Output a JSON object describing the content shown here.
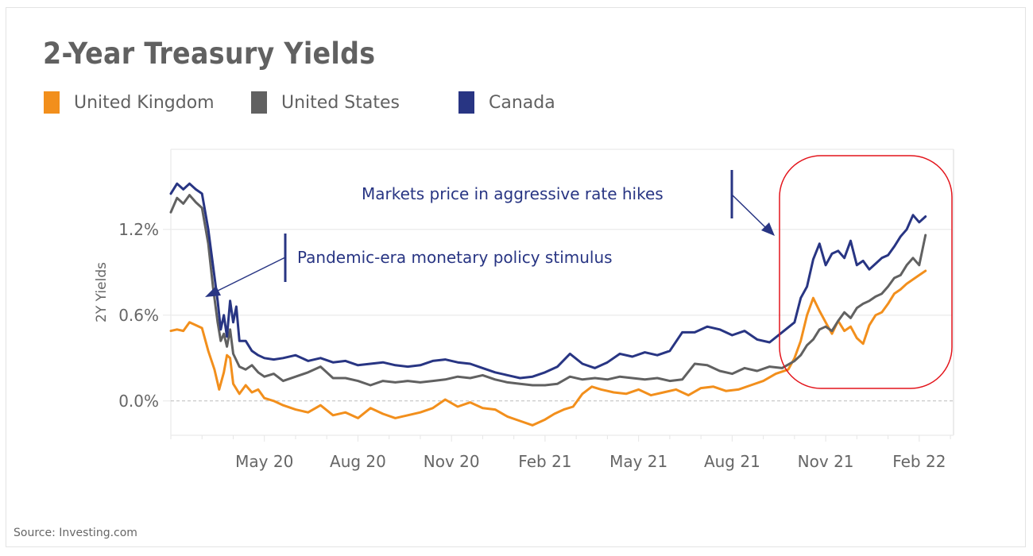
{
  "title": "2-Year Treasury Yields",
  "source": "Source: Investing.com",
  "colors": {
    "uk": "#f28f1c",
    "us": "#616161",
    "canada": "#283583",
    "highlight": "#e3141b",
    "grid": "#eeeeee",
    "zero_line": "#bbbbbb"
  },
  "legend": [
    {
      "label": "United Kingdom",
      "color": "#f28f1c"
    },
    {
      "label": "United States",
      "color": "#616161"
    },
    {
      "label": "Canada",
      "color": "#283583"
    }
  ],
  "annotations": {
    "pandemic": "Pandemic-era monetary policy stimulus",
    "hikes": "Markets price in aggressive rate hikes"
  },
  "chart_data": {
    "type": "line",
    "title": "2-Year Treasury Yields",
    "xlabel": "",
    "ylabel": "2Y Yields",
    "x_unit": "months since Feb 2020",
    "xlim": [
      0,
      25.1
    ],
    "ylim": [
      -0.24,
      1.76
    ],
    "x_ticks": [
      {
        "x": 3,
        "label": "May 20"
      },
      {
        "x": 6,
        "label": "Aug 20"
      },
      {
        "x": 9,
        "label": "Nov 20"
      },
      {
        "x": 12,
        "label": "Feb 21"
      },
      {
        "x": 15,
        "label": "May 21"
      },
      {
        "x": 18,
        "label": "Aug 21"
      },
      {
        "x": 21,
        "label": "Nov 21"
      },
      {
        "x": 24,
        "label": "Feb 22"
      }
    ],
    "y_ticks": [
      {
        "y": 0.0,
        "label": "0.0%"
      },
      {
        "y": 0.6,
        "label": "0.6%"
      },
      {
        "y": 1.2,
        "label": "1.2%"
      }
    ],
    "grid": true,
    "legend_position": "top-left",
    "series": [
      {
        "name": "United Kingdom",
        "key": "uk",
        "x": [
          0,
          0.2,
          0.4,
          0.6,
          0.8,
          1.0,
          1.2,
          1.4,
          1.55,
          1.7,
          1.8,
          1.9,
          2.0,
          2.2,
          2.4,
          2.6,
          2.8,
          3.0,
          3.3,
          3.6,
          4.0,
          4.4,
          4.8,
          5.2,
          5.6,
          6.0,
          6.4,
          6.8,
          7.2,
          7.6,
          8.0,
          8.4,
          8.8,
          9.2,
          9.6,
          10.0,
          10.4,
          10.8,
          11.2,
          11.6,
          12.0,
          12.3,
          12.6,
          12.9,
          13.2,
          13.5,
          13.8,
          14.2,
          14.6,
          15.0,
          15.4,
          15.8,
          16.2,
          16.6,
          17.0,
          17.4,
          17.8,
          18.2,
          18.6,
          19.0,
          19.4,
          19.8,
          20.0,
          20.2,
          20.4,
          20.6,
          20.8,
          21.0,
          21.2,
          21.4,
          21.6,
          21.8,
          22.0,
          22.2,
          22.4,
          22.6,
          22.8,
          23.0,
          23.2,
          23.4,
          23.6,
          23.8,
          24.0,
          24.2
        ],
        "values": [
          0.49,
          0.5,
          0.49,
          0.55,
          0.53,
          0.51,
          0.35,
          0.22,
          0.08,
          0.2,
          0.32,
          0.3,
          0.12,
          0.05,
          0.11,
          0.06,
          0.08,
          0.02,
          0.0,
          -0.03,
          -0.06,
          -0.08,
          -0.03,
          -0.1,
          -0.08,
          -0.12,
          -0.05,
          -0.09,
          -0.12,
          -0.1,
          -0.08,
          -0.05,
          0.01,
          -0.04,
          -0.01,
          -0.05,
          -0.06,
          -0.11,
          -0.14,
          -0.17,
          -0.13,
          -0.09,
          -0.06,
          -0.04,
          0.05,
          0.1,
          0.08,
          0.06,
          0.05,
          0.08,
          0.04,
          0.06,
          0.08,
          0.04,
          0.09,
          0.1,
          0.07,
          0.08,
          0.11,
          0.14,
          0.19,
          0.22,
          0.3,
          0.42,
          0.6,
          0.72,
          0.63,
          0.55,
          0.47,
          0.56,
          0.49,
          0.52,
          0.44,
          0.4,
          0.53,
          0.6,
          0.62,
          0.68,
          0.75,
          0.78,
          0.82,
          0.85,
          0.88,
          0.91
        ]
      },
      {
        "name": "United States",
        "key": "us",
        "x": [
          0,
          0.2,
          0.4,
          0.6,
          0.8,
          1.0,
          1.2,
          1.35,
          1.5,
          1.6,
          1.7,
          1.8,
          1.9,
          2.0,
          2.2,
          2.4,
          2.6,
          2.8,
          3.0,
          3.3,
          3.6,
          4.0,
          4.4,
          4.8,
          5.2,
          5.6,
          6.0,
          6.4,
          6.8,
          7.2,
          7.6,
          8.0,
          8.4,
          8.8,
          9.2,
          9.6,
          10.0,
          10.4,
          10.8,
          11.2,
          11.6,
          12.0,
          12.4,
          12.8,
          13.2,
          13.6,
          14.0,
          14.4,
          14.8,
          15.2,
          15.6,
          16.0,
          16.4,
          16.8,
          17.2,
          17.6,
          18.0,
          18.4,
          18.8,
          19.2,
          19.6,
          20.0,
          20.2,
          20.4,
          20.6,
          20.8,
          21.0,
          21.2,
          21.4,
          21.6,
          21.8,
          22.0,
          22.2,
          22.4,
          22.6,
          22.8,
          23.0,
          23.2,
          23.4,
          23.6,
          23.8,
          24.0,
          24.2
        ],
        "values": [
          1.32,
          1.42,
          1.38,
          1.44,
          1.39,
          1.35,
          1.1,
          0.8,
          0.55,
          0.42,
          0.47,
          0.38,
          0.5,
          0.33,
          0.24,
          0.22,
          0.25,
          0.2,
          0.17,
          0.19,
          0.14,
          0.17,
          0.2,
          0.24,
          0.16,
          0.16,
          0.14,
          0.11,
          0.14,
          0.13,
          0.14,
          0.13,
          0.14,
          0.15,
          0.17,
          0.16,
          0.18,
          0.15,
          0.13,
          0.12,
          0.11,
          0.11,
          0.12,
          0.17,
          0.15,
          0.16,
          0.15,
          0.17,
          0.16,
          0.15,
          0.16,
          0.14,
          0.15,
          0.26,
          0.25,
          0.21,
          0.19,
          0.23,
          0.21,
          0.24,
          0.23,
          0.28,
          0.32,
          0.39,
          0.43,
          0.5,
          0.52,
          0.49,
          0.56,
          0.62,
          0.58,
          0.65,
          0.68,
          0.7,
          0.73,
          0.75,
          0.8,
          0.86,
          0.88,
          0.95,
          1.0,
          0.95,
          1.16
        ]
      },
      {
        "name": "Canada",
        "key": "canada",
        "x": [
          0,
          0.2,
          0.4,
          0.6,
          0.8,
          1.0,
          1.2,
          1.35,
          1.5,
          1.6,
          1.7,
          1.8,
          1.9,
          2.0,
          2.1,
          2.2,
          2.4,
          2.6,
          2.8,
          3.0,
          3.3,
          3.6,
          4.0,
          4.4,
          4.8,
          5.2,
          5.6,
          6.0,
          6.4,
          6.8,
          7.2,
          7.6,
          8.0,
          8.4,
          8.8,
          9.2,
          9.6,
          10.0,
          10.4,
          10.8,
          11.2,
          11.6,
          12.0,
          12.4,
          12.8,
          13.2,
          13.6,
          14.0,
          14.4,
          14.8,
          15.2,
          15.6,
          16.0,
          16.4,
          16.8,
          17.2,
          17.6,
          18.0,
          18.4,
          18.8,
          19.2,
          19.6,
          20.0,
          20.2,
          20.4,
          20.6,
          20.8,
          21.0,
          21.2,
          21.4,
          21.6,
          21.8,
          22.0,
          22.2,
          22.4,
          22.6,
          22.8,
          23.0,
          23.2,
          23.4,
          23.6,
          23.8,
          24.0,
          24.2
        ],
        "values": [
          1.45,
          1.52,
          1.48,
          1.52,
          1.48,
          1.45,
          1.2,
          0.95,
          0.7,
          0.5,
          0.6,
          0.45,
          0.7,
          0.55,
          0.66,
          0.42,
          0.42,
          0.35,
          0.32,
          0.3,
          0.29,
          0.3,
          0.32,
          0.28,
          0.3,
          0.27,
          0.28,
          0.25,
          0.26,
          0.27,
          0.25,
          0.24,
          0.25,
          0.28,
          0.29,
          0.27,
          0.26,
          0.23,
          0.2,
          0.18,
          0.16,
          0.17,
          0.2,
          0.24,
          0.33,
          0.26,
          0.23,
          0.27,
          0.33,
          0.31,
          0.34,
          0.32,
          0.35,
          0.48,
          0.48,
          0.52,
          0.5,
          0.46,
          0.49,
          0.43,
          0.41,
          0.48,
          0.55,
          0.72,
          0.8,
          0.99,
          1.1,
          0.95,
          1.03,
          1.05,
          1.0,
          1.12,
          0.95,
          0.98,
          0.92,
          0.96,
          1.0,
          1.02,
          1.08,
          1.15,
          1.2,
          1.3,
          1.25,
          1.29
        ]
      }
    ]
  }
}
